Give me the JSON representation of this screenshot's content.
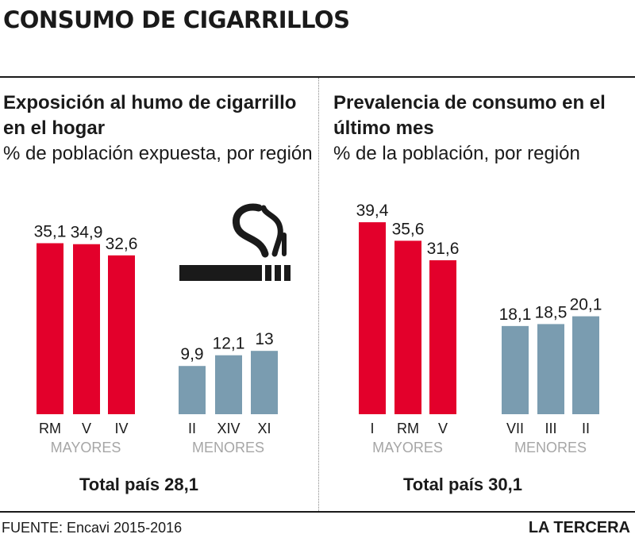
{
  "title": "CONSUMO DE CIGARRILLOS",
  "charts": {
    "left": {
      "heading": "Exposición al  humo de cigarrillo en el hogar",
      "subtitle": "% de población expuesta, por región",
      "total": "Total país 28,1"
    },
    "right": {
      "heading": "Prevalencia de consumo en el último mes",
      "subtitle": "% de la población, por región",
      "total": "Total país 30,1"
    }
  },
  "icons": [
    "cigarette-icon",
    "smoke-icon"
  ],
  "colors": {
    "mayores": "#e3002b",
    "menores": "#7a9cb0",
    "group_label": "#a6a6a6"
  },
  "chart_data": [
    {
      "type": "bar",
      "title": "Exposición al  humo de cigarrillo en el hogar",
      "subtitle": "% de población expuesta, por región",
      "categories": [
        "RM",
        "V",
        "IV",
        "II",
        "XIV",
        "XI"
      ],
      "values": [
        35.1,
        34.9,
        32.6,
        9.9,
        12.1,
        13
      ],
      "value_labels": [
        "35,1",
        "34,9",
        "32,6",
        "9,9",
        "12,1",
        "13"
      ],
      "groups": [
        {
          "name": "MAYORES",
          "indices": [
            0,
            1,
            2
          ],
          "color": "#e3002b"
        },
        {
          "name": "MENORES",
          "indices": [
            3,
            4,
            5
          ],
          "color": "#7a9cb0"
        }
      ],
      "total": "Total país 28,1"
    },
    {
      "type": "bar",
      "title": "Prevalencia de consumo en el último mes",
      "subtitle": "% de la población, por región",
      "categories": [
        "I",
        "RM",
        "V",
        "VII",
        "III",
        "II"
      ],
      "values": [
        39.4,
        35.6,
        31.6,
        18.1,
        18.5,
        20.1
      ],
      "value_labels": [
        "39,4",
        "35,6",
        "31,6",
        "18,1",
        "18,5",
        "20,1"
      ],
      "groups": [
        {
          "name": "MAYORES",
          "indices": [
            0,
            1,
            2
          ],
          "color": "#e3002b"
        },
        {
          "name": "MENORES",
          "indices": [
            3,
            4,
            5
          ],
          "color": "#7a9cb0"
        }
      ],
      "total": "Total país 30,1"
    }
  ],
  "source": "FUENTE: Encavi 2015-2016",
  "brand": "LA TERCERA"
}
